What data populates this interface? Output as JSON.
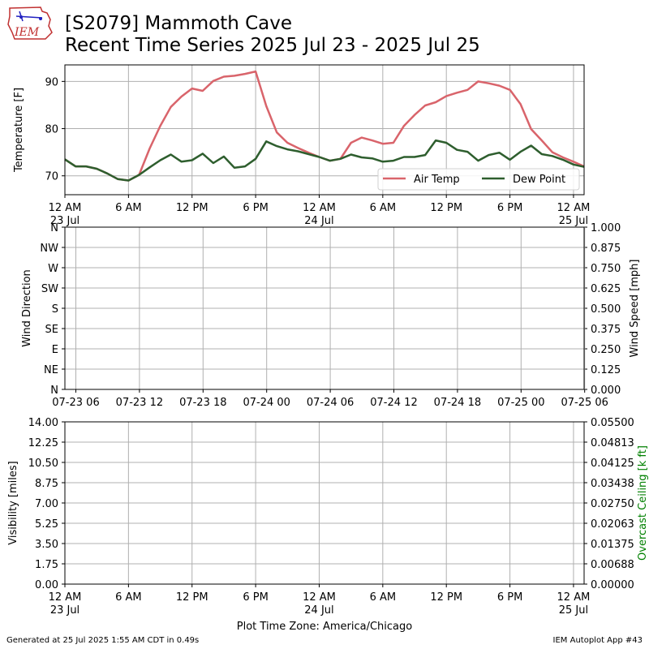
{
  "header": {
    "title_line1": "[S2079] Mammoth Cave",
    "title_line2": "Recent Time Series 2025 Jul 23 - 2025 Jul 25",
    "logo_text": "IEM"
  },
  "footer": {
    "generated": "Generated at 25 Jul 2025 1:55 AM CDT in 0.49s",
    "app": "IEM Autoplot App #43"
  },
  "colors": {
    "air_temp": "#d9646b",
    "dew_point": "#2e5e2e",
    "grid": "#b0b0b0",
    "ceiling_axis": "#008000"
  },
  "chart_data": [
    {
      "type": "line",
      "panel": "temperature",
      "ylabel": "Temperature [F]",
      "ylim": [
        66,
        93.5
      ],
      "yticks": [
        70,
        80,
        90
      ],
      "grid": true,
      "legend_placement": "lower-right",
      "x_unit": "hours since 23 Jul 12 AM",
      "xlim": [
        0,
        49
      ],
      "xticks": [
        {
          "x": 0,
          "label": "12 AM",
          "sub": "23 Jul"
        },
        {
          "x": 6,
          "label": "6 AM",
          "sub": ""
        },
        {
          "x": 12,
          "label": "12 PM",
          "sub": ""
        },
        {
          "x": 18,
          "label": "6 PM",
          "sub": ""
        },
        {
          "x": 24,
          "label": "12 AM",
          "sub": "24 Jul"
        },
        {
          "x": 30,
          "label": "6 AM",
          "sub": ""
        },
        {
          "x": 36,
          "label": "12 PM",
          "sub": ""
        },
        {
          "x": 42,
          "label": "6 PM",
          "sub": ""
        },
        {
          "x": 48,
          "label": "12 AM",
          "sub": "25 Jul"
        }
      ],
      "series": [
        {
          "name": "Air Temp",
          "x": [
            0,
            1,
            2,
            3,
            4,
            5,
            6,
            7,
            8,
            9,
            10,
            11,
            12,
            13,
            14,
            15,
            16,
            17,
            18,
            19,
            20,
            21,
            22,
            23,
            24,
            25,
            26,
            27,
            28,
            29,
            30,
            31,
            32,
            33,
            34,
            35,
            36,
            37,
            38,
            39,
            40,
            41,
            42,
            43,
            44,
            45,
            46,
            47,
            48,
            49
          ],
          "values": [
            73.5,
            72.0,
            72.0,
            71.5,
            70.5,
            69.3,
            69.0,
            70.2,
            75.8,
            80.6,
            84.6,
            86.8,
            88.5,
            88.0,
            90.1,
            91.0,
            91.2,
            91.6,
            92.1,
            84.8,
            79.2,
            77.0,
            75.9,
            74.9,
            74.0,
            73.2,
            73.6,
            77.0,
            78.1,
            77.5,
            76.8,
            77.0,
            80.6,
            82.9,
            84.9,
            85.6,
            86.9,
            87.6,
            88.2,
            90.0,
            89.6,
            89.1,
            88.2,
            85.2,
            79.9,
            77.5,
            75.0,
            73.9,
            73.0,
            72.0
          ]
        },
        {
          "name": "Dew Point",
          "x": [
            0,
            1,
            2,
            3,
            4,
            5,
            6,
            7,
            8,
            9,
            10,
            11,
            12,
            13,
            14,
            15,
            16,
            17,
            18,
            19,
            20,
            21,
            22,
            23,
            24,
            25,
            26,
            27,
            28,
            29,
            30,
            31,
            32,
            33,
            34,
            35,
            36,
            37,
            38,
            39,
            40,
            41,
            42,
            43,
            44,
            45,
            46,
            47,
            48,
            49
          ],
          "values": [
            73.5,
            72.0,
            72.0,
            71.5,
            70.5,
            69.3,
            69.0,
            70.2,
            71.8,
            73.3,
            74.5,
            73.0,
            73.3,
            74.7,
            72.7,
            74.1,
            71.7,
            72.0,
            73.6,
            77.3,
            76.3,
            75.6,
            75.2,
            74.6,
            74.0,
            73.2,
            73.6,
            74.5,
            73.9,
            73.7,
            73.0,
            73.2,
            74.0,
            74.0,
            74.4,
            77.5,
            77.0,
            75.5,
            75.1,
            73.2,
            74.4,
            74.9,
            73.4,
            75.1,
            76.4,
            74.6,
            74.2,
            73.4,
            72.4,
            71.9
          ]
        }
      ]
    },
    {
      "type": "line",
      "panel": "wind",
      "ylabel": "Wind Direction",
      "yticks_left": [
        "N",
        "NE",
        "E",
        "SE",
        "S",
        "SW",
        "W",
        "NW",
        "N"
      ],
      "y2label": "Wind Speed [mph]",
      "y2lim": [
        0,
        1
      ],
      "yticks_right": [
        "0.000",
        "0.125",
        "0.250",
        "0.375",
        "0.500",
        "0.625",
        "0.750",
        "0.875",
        "1.000"
      ],
      "xticks": [
        "07-23 06",
        "07-23 12",
        "07-23 18",
        "07-24 00",
        "07-24 06",
        "07-24 12",
        "07-24 18",
        "07-25 00",
        "07-25 06"
      ],
      "grid": true,
      "series": []
    },
    {
      "type": "line",
      "panel": "visibility",
      "ylabel": "Visibility [miles]",
      "ylim": [
        0,
        14
      ],
      "yticks_left": [
        "0.00",
        "1.75",
        "3.50",
        "5.25",
        "7.00",
        "8.75",
        "10.50",
        "12.25",
        "14.00"
      ],
      "y2label": "Overcast Ceiling [k ft]",
      "y2lim": [
        0,
        0.055
      ],
      "yticks_right": [
        "0.00000",
        "0.00688",
        "0.01375",
        "0.02063",
        "0.02750",
        "0.03438",
        "0.04125",
        "0.04813",
        "0.05500"
      ],
      "xlabel": "Plot Time Zone: America/Chicago",
      "grid": true,
      "series": []
    }
  ]
}
